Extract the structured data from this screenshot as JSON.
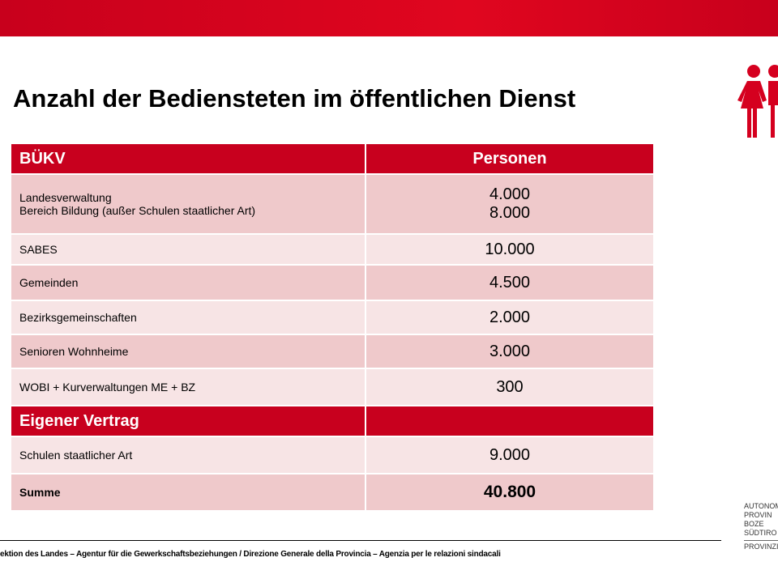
{
  "title": "Anzahl der Bediensteten im öffentlichen Dienst",
  "table": {
    "header": [
      "BÜKV",
      "Personen"
    ],
    "rows": [
      {
        "labels": [
          "Landesverwaltung",
          "Bereich Bildung (außer Schulen staatlicher Art)"
        ],
        "values": [
          "4.000",
          "8.000"
        ]
      },
      {
        "labels": [
          "SABES"
        ],
        "values": [
          "10.000"
        ]
      },
      {
        "labels": [
          "Gemeinden"
        ],
        "values": [
          "4.500"
        ]
      },
      {
        "labels": [
          "Bezirksgemeinschaften"
        ],
        "values": [
          "2.000"
        ]
      },
      {
        "labels": [
          "Senioren Wohnheime"
        ],
        "values": [
          "3.000"
        ]
      },
      {
        "labels": [
          "WOBI + Kurverwaltungen  ME + BZ"
        ],
        "values": [
          "300"
        ]
      }
    ],
    "section": "Eigener Vertrag",
    "section_rows": [
      {
        "labels": [
          "Schulen staatlicher Art"
        ],
        "values": [
          "9.000"
        ]
      }
    ],
    "total": {
      "label": "Summe",
      "value": "40.800"
    }
  },
  "logo": [
    "AUTONOM",
    "PROVIN",
    "BOZE",
    "SÜDTIRO",
    "PROVINZIA"
  ],
  "footer": "ektion des Landes – Agentur für die Gewerkschaftsbeziehungen / Direzione Generale della Provincia – Agenzia per le relazioni sindacali"
}
